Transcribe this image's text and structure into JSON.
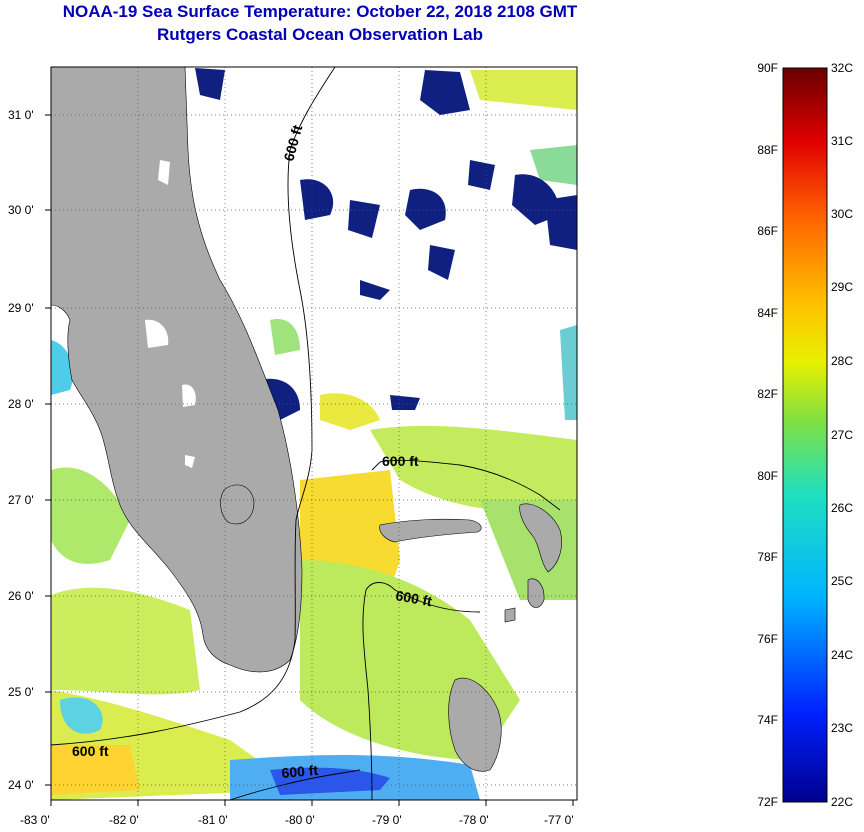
{
  "header": {
    "title": "NOAA-19 Sea Surface Temperature:  October 22, 2018 2108 GMT",
    "subtitle": "Rutgers Coastal Ocean Observation Lab"
  },
  "map": {
    "lon_range": [
      -83,
      -77
    ],
    "lat_range": [
      23.8,
      31.4
    ],
    "lon_ticks": [
      "-83 0'",
      "-82 0'",
      "-81 0'",
      "-80 0'",
      "-79 0'",
      "-78 0'",
      "-77 0'"
    ],
    "lat_ticks": [
      "31 0'",
      "30 0'",
      "29 0'",
      "28 0'",
      "27 0'",
      "26 0'",
      "25 0'",
      "24 0'"
    ],
    "contour_labels": [
      "600 ft",
      "600 ft",
      "600 ft",
      "600 ft",
      "600 ft"
    ],
    "colors": {
      "land": "#aaaaaa",
      "clouds": "#ffffff",
      "grid": "#555555"
    }
  },
  "colorbar": {
    "fahrenheit": [
      "90F",
      "88F",
      "86F",
      "84F",
      "82F",
      "80F",
      "78F",
      "76F",
      "74F",
      "72F"
    ],
    "celsius": [
      "32C",
      "31C",
      "30C",
      "29C",
      "28C",
      "27C",
      "26C",
      "25C",
      "24C",
      "23C",
      "22C"
    ],
    "range_c": [
      22,
      32
    ]
  }
}
